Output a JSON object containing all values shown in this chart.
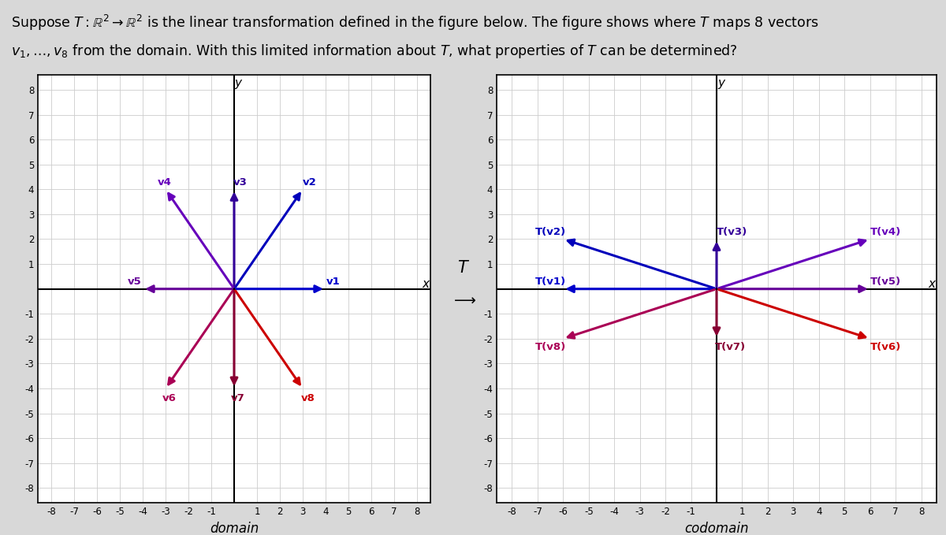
{
  "domain_vectors": {
    "v1": [
      4,
      0
    ],
    "v2": [
      3,
      4
    ],
    "v3": [
      0,
      4
    ],
    "v4": [
      -3,
      4
    ],
    "v5": [
      -4,
      0
    ],
    "v6": [
      -3,
      -4
    ],
    "v7": [
      0,
      -4
    ],
    "v8": [
      3,
      -4
    ]
  },
  "codomain_vectors": {
    "T(v1)": [
      -6,
      0
    ],
    "T(v2)": [
      -6,
      2
    ],
    "T(v3)": [
      0,
      2
    ],
    "T(v4)": [
      6,
      2
    ],
    "T(v5)": [
      6,
      0
    ],
    "T(v6)": [
      6,
      -2
    ],
    "T(v7)": [
      0,
      -2
    ],
    "T(v8)": [
      -6,
      -2
    ]
  },
  "domain_colors": {
    "v1": "#0000cc",
    "v2": "#0000bb",
    "v3": "#330099",
    "v4": "#6600bb",
    "v5": "#660099",
    "v6": "#aa0055",
    "v7": "#880033",
    "v8": "#cc0000"
  },
  "codomain_colors": {
    "T(v1)": "#0000cc",
    "T(v2)": "#0000bb",
    "T(v3)": "#330099",
    "T(v4)": "#6600bb",
    "T(v5)": "#660099",
    "T(v6)": "#cc0000",
    "T(v7)": "#880033",
    "T(v8)": "#aa0055"
  },
  "domain_label_offsets": {
    "v1": [
      0.35,
      0.28
    ],
    "v2": [
      0.3,
      0.28
    ],
    "v3": [
      0.28,
      0.28
    ],
    "v4": [
      -0.05,
      0.28
    ],
    "v5": [
      -0.35,
      0.28
    ],
    "v6": [
      0.15,
      -0.4
    ],
    "v7": [
      0.15,
      -0.4
    ],
    "v8": [
      0.25,
      -0.4
    ]
  },
  "codomain_label_offsets": {
    "T(v1)": [
      -0.5,
      0.28
    ],
    "T(v2)": [
      -0.5,
      0.28
    ],
    "T(v3)": [
      0.6,
      0.28
    ],
    "T(v4)": [
      0.6,
      0.28
    ],
    "T(v5)": [
      0.6,
      0.28
    ],
    "T(v6)": [
      0.6,
      -0.35
    ],
    "T(v7)": [
      0.55,
      -0.35
    ],
    "T(v8)": [
      -0.5,
      -0.35
    ]
  },
  "background_color": "#d8d8d8",
  "plot_bg": "#ffffff",
  "grid_color": "#cccccc",
  "axis_color": "#000000"
}
